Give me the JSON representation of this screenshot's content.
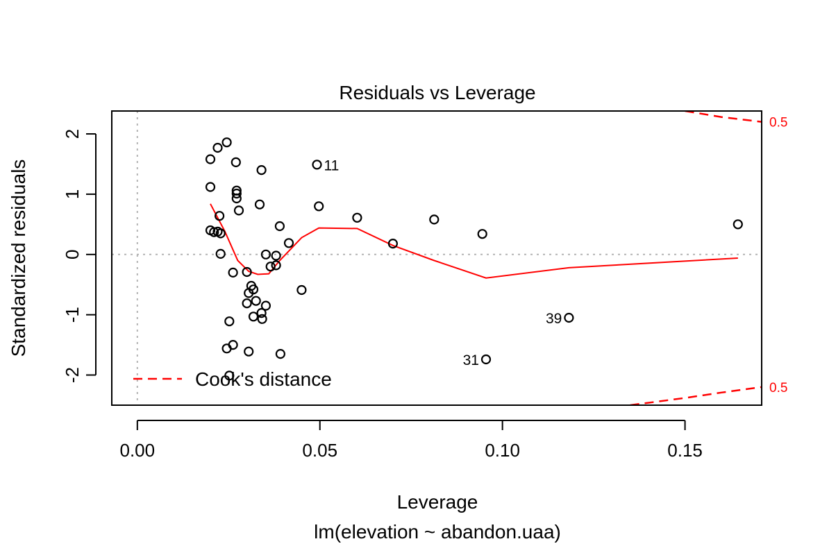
{
  "chart_data": {
    "type": "scatter",
    "title": "Residuals vs Leverage",
    "xlabel": "Leverage",
    "subtitle": "lm(elevation ~ abandon.uaa)",
    "ylabel": "Standardized residuals",
    "xlim": [
      -0.007,
      0.171
    ],
    "ylim": [
      -2.5,
      2.38
    ],
    "xticks": [
      "0.00",
      "0.05",
      "0.10",
      "0.15"
    ],
    "xtick_values": [
      0,
      0.05,
      0.1,
      0.15
    ],
    "yticks": [
      "-2",
      "-1",
      "0",
      "1",
      "2"
    ],
    "ytick_values": [
      -2,
      -1,
      0,
      1,
      2
    ],
    "reference_lines": {
      "h": 0,
      "v": 0
    },
    "points": [
      {
        "x": 0.02,
        "y": 1.58
      },
      {
        "x": 0.02,
        "y": 1.12
      },
      {
        "x": 0.02,
        "y": 0.4
      },
      {
        "x": 0.021,
        "y": 0.37
      },
      {
        "x": 0.022,
        "y": 1.77
      },
      {
        "x": 0.022,
        "y": 0.38
      },
      {
        "x": 0.0225,
        "y": 0.64
      },
      {
        "x": 0.0228,
        "y": 0.35
      },
      {
        "x": 0.0228,
        "y": 0.01
      },
      {
        "x": 0.0245,
        "y": 1.86
      },
      {
        "x": 0.0245,
        "y": -1.56
      },
      {
        "x": 0.0252,
        "y": -2.01
      },
      {
        "x": 0.0252,
        "y": -1.11
      },
      {
        "x": 0.0262,
        "y": -0.3
      },
      {
        "x": 0.0262,
        "y": -1.5
      },
      {
        "x": 0.027,
        "y": 1.53
      },
      {
        "x": 0.0272,
        "y": 1.06
      },
      {
        "x": 0.0272,
        "y": 1.01
      },
      {
        "x": 0.0272,
        "y": 0.93
      },
      {
        "x": 0.0278,
        "y": 0.73
      },
      {
        "x": 0.03,
        "y": -0.29
      },
      {
        "x": 0.03,
        "y": -0.81
      },
      {
        "x": 0.0305,
        "y": -1.61
      },
      {
        "x": 0.0305,
        "y": -0.64
      },
      {
        "x": 0.0312,
        "y": -0.52
      },
      {
        "x": 0.0318,
        "y": -1.03
      },
      {
        "x": 0.0318,
        "y": -0.58
      },
      {
        "x": 0.0325,
        "y": -0.77
      },
      {
        "x": 0.0335,
        "y": 0.83
      },
      {
        "x": 0.034,
        "y": 1.4
      },
      {
        "x": 0.034,
        "y": -0.97
      },
      {
        "x": 0.0342,
        "y": -1.07
      },
      {
        "x": 0.0352,
        "y": 0.0
      },
      {
        "x": 0.0352,
        "y": -0.85
      },
      {
        "x": 0.0365,
        "y": -0.2
      },
      {
        "x": 0.038,
        "y": -0.18
      },
      {
        "x": 0.038,
        "y": -0.02
      },
      {
        "x": 0.039,
        "y": 0.47
      },
      {
        "x": 0.0392,
        "y": -1.65
      },
      {
        "x": 0.0415,
        "y": 0.19
      },
      {
        "x": 0.045,
        "y": -0.59
      },
      {
        "x": 0.0492,
        "y": 1.49
      },
      {
        "x": 0.0497,
        "y": 0.8
      },
      {
        "x": 0.0602,
        "y": 0.61
      },
      {
        "x": 0.07,
        "y": 0.18
      },
      {
        "x": 0.0813,
        "y": 0.58
      },
      {
        "x": 0.0945,
        "y": 0.34
      },
      {
        "x": 0.0955,
        "y": -1.74
      },
      {
        "x": 0.1182,
        "y": -1.05
      },
      {
        "x": 0.1645,
        "y": 0.5
      }
    ],
    "point_labels": [
      {
        "text": "11",
        "x": 0.0492,
        "y": 1.49,
        "side": "right"
      },
      {
        "text": "39",
        "x": 0.1182,
        "y": -1.05,
        "side": "left"
      },
      {
        "text": "31",
        "x": 0.0955,
        "y": -1.74,
        "side": "left"
      }
    ],
    "smoother": {
      "color": "#ff0000",
      "x": [
        0.02,
        0.024,
        0.0275,
        0.0305,
        0.033,
        0.036,
        0.039,
        0.045,
        0.0497,
        0.0602,
        0.07,
        0.0813,
        0.0955,
        0.1182,
        0.1645
      ],
      "y": [
        0.84,
        0.38,
        -0.1,
        -0.28,
        -0.33,
        -0.32,
        -0.1,
        0.28,
        0.44,
        0.43,
        0.15,
        -0.1,
        -0.39,
        -0.22,
        -0.06
      ]
    },
    "cooks_distance": {
      "level_label": "0.5",
      "color": "#ff0000",
      "upper": {
        "x": [
          0.15,
          0.16,
          0.171
        ],
        "y": [
          2.38,
          2.28,
          2.2
        ]
      },
      "lower": {
        "x": [
          0.135,
          0.15,
          0.16,
          0.171
        ],
        "y": [
          -2.5,
          -2.38,
          -2.29,
          -2.2
        ]
      }
    },
    "legend": {
      "label": "Cook's distance",
      "position": "bottom-left"
    }
  }
}
